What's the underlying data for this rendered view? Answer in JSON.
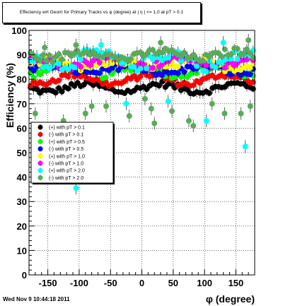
{
  "title": "Effeciency wrt Geom for Primary Tracks vs φ (degree) at | η | <= 1.0 at pT > 0.1",
  "footer": "Wed Nov  9 10:44:18 2011",
  "chart_data": {
    "type": "scatter",
    "xlabel": "φ (degree)",
    "ylabel": "Efficiency (%)",
    "xlim": [
      -180,
      180
    ],
    "ylim": [
      0,
      100
    ],
    "grid": true,
    "legend_placement": "middle-left",
    "x_ticks": [
      -150,
      -100,
      -50,
      0,
      50,
      100,
      150
    ],
    "y_ticks": [
      0,
      10,
      20,
      30,
      40,
      50,
      60,
      70,
      80,
      90,
      100
    ],
    "series": [
      {
        "name": "(+) with pT > 0.1",
        "color": "#000000",
        "level": 76.5,
        "amp": 1.6,
        "spread": 1.2
      },
      {
        "name": "(-) with pT > 0.1",
        "color": "#ff0000",
        "level": 80.0,
        "amp": 2.0,
        "spread": 1.2
      },
      {
        "name": "(+) with pT > 0.5",
        "color": "#00ff00",
        "level": 83.5,
        "amp": 1.8,
        "spread": 1.4
      },
      {
        "name": "(-) with pT > 0.5",
        "color": "#0000ff",
        "level": 84.0,
        "amp": 1.8,
        "spread": 1.4
      },
      {
        "name": "(+) with pT > 1.0",
        "color": "#ffff00",
        "level": 86.0,
        "amp": 1.5,
        "spread": 1.5
      },
      {
        "name": "(-) with pT > 1.0",
        "color": "#ff00ff",
        "level": 87.0,
        "amp": 1.5,
        "spread": 1.5
      },
      {
        "name": "(+) with pT > 2.0",
        "color": "#00ffff",
        "level": 88.0,
        "amp": 2.5,
        "spread": 2.5
      },
      {
        "name": "(-) with pT > 2.0",
        "color": "#5aaa5a",
        "level": 90.0,
        "amp": 1.5,
        "spread": 1.5
      }
    ],
    "outliers": [
      {
        "x": -105,
        "y": 35.5,
        "color": "#00ffff"
      },
      {
        "x": 165,
        "y": 52.5,
        "color": "#00ffff"
      },
      {
        "x": -170,
        "y": 66,
        "color": "#5aaa5a"
      },
      {
        "x": -125,
        "y": 63,
        "color": "#5aaa5a"
      },
      {
        "x": -90,
        "y": 66,
        "color": "#5aaa5a"
      },
      {
        "x": -80,
        "y": 69,
        "color": "#5aaa5a"
      },
      {
        "x": -57,
        "y": 69,
        "color": "#5aaa5a"
      },
      {
        "x": -20,
        "y": 65,
        "color": "#5aaa5a"
      },
      {
        "x": 15,
        "y": 68,
        "color": "#5aaa5a"
      },
      {
        "x": 20,
        "y": 62,
        "color": "#5aaa5a"
      },
      {
        "x": 42,
        "y": 71,
        "color": "#00ffff"
      },
      {
        "x": 48,
        "y": 67,
        "color": "#5aaa5a"
      },
      {
        "x": 75,
        "y": 63,
        "color": "#5aaa5a"
      },
      {
        "x": 82,
        "y": 61,
        "color": "#5aaa5a"
      },
      {
        "x": 103,
        "y": 63,
        "color": "#00ffff"
      },
      {
        "x": 112,
        "y": 70,
        "color": "#5aaa5a"
      },
      {
        "x": 132,
        "y": 66,
        "color": "#5aaa5a"
      },
      {
        "x": 158,
        "y": 66,
        "color": "#5aaa5a"
      },
      {
        "x": 173,
        "y": 69,
        "color": "#5aaa5a"
      },
      {
        "x": -105,
        "y": 94,
        "color": "#5aaa5a"
      },
      {
        "x": -65,
        "y": 94,
        "color": "#00ffff"
      },
      {
        "x": -155,
        "y": 93,
        "color": "#5aaa5a"
      },
      {
        "x": 130,
        "y": 95,
        "color": "#00ffff"
      },
      {
        "x": 170,
        "y": 96,
        "color": "#5aaa5a"
      },
      {
        "x": 30,
        "y": 95,
        "color": "#5aaa5a"
      },
      {
        "x": -25,
        "y": 70,
        "color": "#00ffff"
      },
      {
        "x": 5,
        "y": 72,
        "color": "#5aaa5a"
      }
    ]
  }
}
